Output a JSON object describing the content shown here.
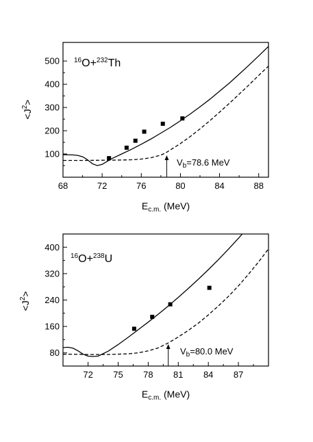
{
  "chart_data": [
    {
      "type": "line",
      "panel": "top",
      "annotation": {
        "mass_a": "16",
        "el_a": "O+",
        "mass_b": "232",
        "el_b": "Th"
      },
      "xlabel": {
        "main": "E",
        "sub": "c.m.",
        "unit": " (MeV)"
      },
      "ylabel": {
        "pre": "<J",
        "sup": "2",
        "post": ">"
      },
      "xlim": [
        68,
        89
      ],
      "ylim": [
        0,
        580
      ],
      "xticks": [
        68,
        72,
        76,
        80,
        84,
        88
      ],
      "yticks": [
        100,
        200,
        300,
        400,
        500
      ],
      "barrier": {
        "x": 78.6,
        "label_main": "V",
        "label_sub": "b",
        "label_value": "=78.6 MeV"
      },
      "series": [
        {
          "style": "solid",
          "x": [
            68,
            69,
            69.5,
            70,
            70.5,
            71,
            71.5,
            72,
            72.5,
            73,
            74,
            75,
            76,
            77,
            78,
            79,
            80,
            81,
            82,
            83,
            84,
            85,
            86,
            87,
            88,
            89
          ],
          "y": [
            97,
            96,
            94,
            88,
            75,
            58,
            50,
            55,
            68,
            80,
            100,
            120,
            142,
            165,
            190,
            215,
            243,
            272,
            303,
            335,
            370,
            405,
            443,
            482,
            522,
            563
          ]
        },
        {
          "style": "dashed",
          "x": [
            68,
            70,
            72,
            74,
            75,
            76,
            77,
            78,
            78.5,
            79,
            80,
            81,
            82,
            83,
            84,
            85,
            86,
            87,
            88,
            89
          ],
          "y": [
            72,
            72,
            73,
            74,
            75,
            78,
            84,
            95,
            105,
            118,
            145,
            175,
            208,
            243,
            280,
            318,
            357,
            397,
            438,
            478
          ]
        },
        {
          "style": "markers",
          "x": [
            72.7,
            74.5,
            75.4,
            76.3,
            78.2,
            80.2
          ],
          "y": [
            82,
            127,
            157,
            196,
            230,
            253
          ]
        }
      ]
    },
    {
      "type": "line",
      "panel": "bottom",
      "annotation": {
        "mass_a": "16",
        "el_a": "O+",
        "mass_b": "238",
        "el_b": "U"
      },
      "xlabel": {
        "main": "E",
        "sub": "c.m.",
        "unit": " (MeV)"
      },
      "ylabel": {
        "pre": "<J",
        "sup": "2",
        "post": ">"
      },
      "xlim": [
        69.5,
        90
      ],
      "ylim": [
        40,
        440
      ],
      "xticks": [
        72,
        75,
        78,
        81,
        84,
        87
      ],
      "yticks": [
        80,
        160,
        240,
        320,
        400
      ],
      "barrier": {
        "x": 80.0,
        "label_main": "V",
        "label_sub": "b",
        "label_value": "=80.0 MeV"
      },
      "series": [
        {
          "style": "solid",
          "x": [
            69.5,
            70,
            70.5,
            71,
            71.5,
            72,
            72.5,
            73,
            74,
            75,
            76,
            77,
            78,
            79,
            80,
            81,
            82,
            83,
            84,
            85,
            86,
            87,
            88,
            89
          ],
          "y": [
            96,
            97,
            94,
            86,
            76,
            70,
            69,
            70,
            85,
            105,
            127,
            150,
            173,
            197,
            222,
            248,
            275,
            303,
            332,
            362,
            394,
            427,
            461,
            495
          ]
        },
        {
          "style": "dashed",
          "x": [
            69.5,
            72,
            74,
            76,
            77,
            78,
            79,
            80,
            81,
            82,
            83,
            84,
            85,
            86,
            87,
            88,
            89,
            90
          ],
          "y": [
            76,
            75,
            75,
            77,
            80,
            86,
            95,
            110,
            128,
            148,
            170,
            195,
            222,
            251,
            283,
            318,
            355,
            395
          ]
        },
        {
          "style": "markers",
          "x": [
            76.6,
            78.4,
            80.2,
            84.1
          ],
          "y": [
            153,
            189,
            227,
            277
          ]
        }
      ]
    }
  ]
}
